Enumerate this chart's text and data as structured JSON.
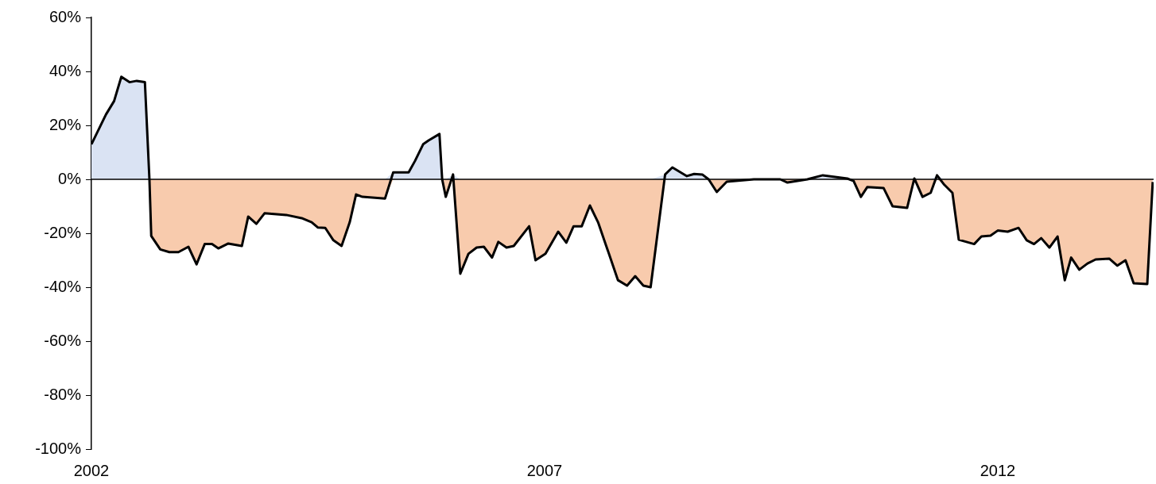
{
  "chart_data": {
    "type": "area",
    "xlim": [
      2002,
      2013.72
    ],
    "xticks": [
      2002,
      2007,
      2012
    ],
    "ylim": [
      -100,
      60
    ],
    "yticks": [
      {
        "value": 60,
        "label": "60%"
      },
      {
        "value": 40,
        "label": "40%"
      },
      {
        "value": 20,
        "label": "20%"
      },
      {
        "value": 0,
        "label": "0%"
      },
      {
        "value": -20,
        "label": "-20%"
      },
      {
        "value": -40,
        "label": "-40%"
      },
      {
        "value": -60,
        "label": "-60%"
      },
      {
        "value": -80,
        "label": "-80%"
      },
      {
        "value": -100,
        "label": "-100%"
      }
    ],
    "grid": false,
    "legend": false,
    "marker": "none",
    "line_style": "solid",
    "ref_lines": [
      {
        "axis": "y",
        "value": 0,
        "color": "#000000"
      }
    ],
    "x": [
      2002.0,
      2002.16,
      2002.25,
      2002.33,
      2002.42,
      2002.5,
      2002.59,
      2002.64,
      2002.66,
      2002.76,
      2002.86,
      2002.96,
      2003.07,
      2003.16,
      2003.25,
      2003.33,
      2003.4,
      2003.51,
      2003.66,
      2003.73,
      2003.82,
      2003.91,
      2004.15,
      2004.32,
      2004.43,
      2004.5,
      2004.58,
      2004.67,
      2004.76,
      2004.85,
      2004.92,
      2004.99,
      2005.24,
      2005.33,
      2005.5,
      2005.57,
      2005.66,
      2005.72,
      2005.84,
      2005.87,
      2005.91,
      2005.99,
      2006.07,
      2006.16,
      2006.25,
      2006.33,
      2006.42,
      2006.49,
      2006.58,
      2006.66,
      2006.83,
      2006.9,
      2007.01,
      2007.15,
      2007.24,
      2007.32,
      2007.41,
      2007.5,
      2007.59,
      2007.71,
      2007.81,
      2007.91,
      2008.0,
      2008.09,
      2008.17,
      2008.33,
      2008.41,
      2008.57,
      2008.65,
      2008.74,
      2008.81,
      2008.9,
      2009.01,
      2009.31,
      2009.6,
      2009.68,
      2009.9,
      2010.07,
      2010.34,
      2010.41,
      2010.49,
      2010.56,
      2010.74,
      2010.84,
      2011.0,
      2011.08,
      2011.17,
      2011.26,
      2011.33,
      2011.41,
      2011.5,
      2011.57,
      2011.74,
      2011.82,
      2011.92,
      2012.0,
      2012.11,
      2012.23,
      2012.32,
      2012.4,
      2012.48,
      2012.57,
      2012.66,
      2012.74,
      2012.81,
      2012.9,
      2012.99,
      2013.08,
      2013.23,
      2013.32,
      2013.41,
      2013.5,
      2013.65,
      2013.71
    ],
    "series": [
      {
        "color": "#dae3f3",
        "values": [
          13,
          24,
          29,
          38,
          36,
          36.5,
          36,
          0,
          0,
          0,
          0,
          0,
          0,
          0,
          0,
          0,
          0,
          0,
          0,
          0,
          0,
          0,
          0,
          0,
          0,
          0,
          0,
          0,
          0,
          0,
          0,
          0,
          0,
          2.6,
          2.6,
          6.8,
          13,
          14.4,
          16.8,
          0,
          0,
          1.8,
          0,
          0,
          0,
          0,
          0,
          0,
          0,
          0,
          0,
          0,
          0,
          0,
          0,
          0,
          0,
          0,
          0,
          0,
          0,
          0,
          0,
          0,
          0,
          1.8,
          4.4,
          1.2,
          2,
          1.8,
          0,
          0,
          0,
          0,
          0,
          0,
          0,
          1.5,
          0.3,
          0,
          0,
          0,
          0,
          0,
          0,
          0.3,
          0,
          0,
          1.5,
          0,
          0,
          0,
          0,
          0,
          0,
          0,
          0,
          0,
          0,
          0,
          0,
          0,
          0,
          0,
          0,
          0,
          0,
          0,
          0,
          0,
          0,
          0,
          0,
          0
        ]
      },
      {
        "type": "area",
        "color": "#f8cbad",
        "values": [
          0,
          0,
          0,
          0,
          0,
          0,
          0,
          0,
          -21,
          -26,
          -27,
          -27,
          -25,
          -31.5,
          -24,
          -24,
          -25.6,
          -23.8,
          -24.7,
          -13.8,
          -16.5,
          -12.6,
          -13.2,
          -14.4,
          -15.9,
          -17.9,
          -18,
          -22.6,
          -24.7,
          -15.9,
          -5.6,
          -6.5,
          -7.1,
          0,
          0,
          0,
          0,
          0,
          0,
          0,
          -6.5,
          0,
          -35,
          -27.6,
          -25.3,
          -25,
          -29,
          -23.2,
          -25.3,
          -24.7,
          -17.4,
          -30,
          -27.6,
          -19.4,
          -23.5,
          -17.4,
          -17.4,
          -9.7,
          -15.9,
          -27.6,
          -37.4,
          -39.4,
          -35.9,
          -39.4,
          -40,
          0,
          0,
          0,
          0,
          0,
          0,
          -4.7,
          -0.9,
          0,
          0,
          -1.2,
          0,
          0,
          0,
          -0.6,
          -6.5,
          -2.9,
          -3.2,
          -10,
          -10.6,
          0,
          -6.5,
          -5,
          0,
          -2,
          -5,
          -22.4,
          -24,
          -21.2,
          -20.9,
          -19,
          -19.4,
          -18,
          -22.6,
          -24,
          -21.8,
          -25.3,
          -21.2,
          -37.4,
          -29,
          -33.5,
          -31.2,
          -29.7,
          -29.4,
          -32,
          -30,
          -38.5,
          -38.8,
          -1
        ]
      },
      {
        "type": "line",
        "color": "#000000",
        "values": [
          13,
          24,
          29,
          38,
          36,
          36.5,
          36,
          0,
          -21,
          -26,
          -27,
          -27,
          -25,
          -31.5,
          -24,
          -24,
          -25.6,
          -23.8,
          -24.7,
          -13.8,
          -16.5,
          -12.6,
          -13.2,
          -14.4,
          -15.9,
          -17.9,
          -18,
          -22.6,
          -24.7,
          -15.9,
          -5.6,
          -6.5,
          -7.1,
          2.6,
          2.6,
          6.8,
          13,
          14.4,
          16.8,
          0,
          -6.5,
          1.8,
          -35,
          -27.6,
          -25.3,
          -25,
          -29,
          -23.2,
          -25.3,
          -24.7,
          -17.4,
          -30,
          -27.6,
          -19.4,
          -23.5,
          -17.4,
          -17.4,
          -9.7,
          -15.9,
          -27.6,
          -37.4,
          -39.4,
          -35.9,
          -39.4,
          -40,
          1.8,
          4.4,
          1.2,
          2,
          1.8,
          0,
          -4.7,
          -0.9,
          0,
          0,
          -1.2,
          0,
          1.5,
          0.3,
          -0.6,
          -6.5,
          -2.9,
          -3.2,
          -10,
          -10.6,
          0.3,
          -6.5,
          -5,
          1.5,
          -2,
          -5,
          -22.4,
          -24,
          -21.2,
          -20.9,
          -19,
          -19.4,
          -18,
          -22.6,
          -24,
          -21.8,
          -25.3,
          -21.2,
          -37.4,
          -29,
          -33.5,
          -31.2,
          -29.7,
          -29.4,
          -32,
          -30,
          -38.5,
          -38.8,
          -1
        ]
      }
    ]
  }
}
